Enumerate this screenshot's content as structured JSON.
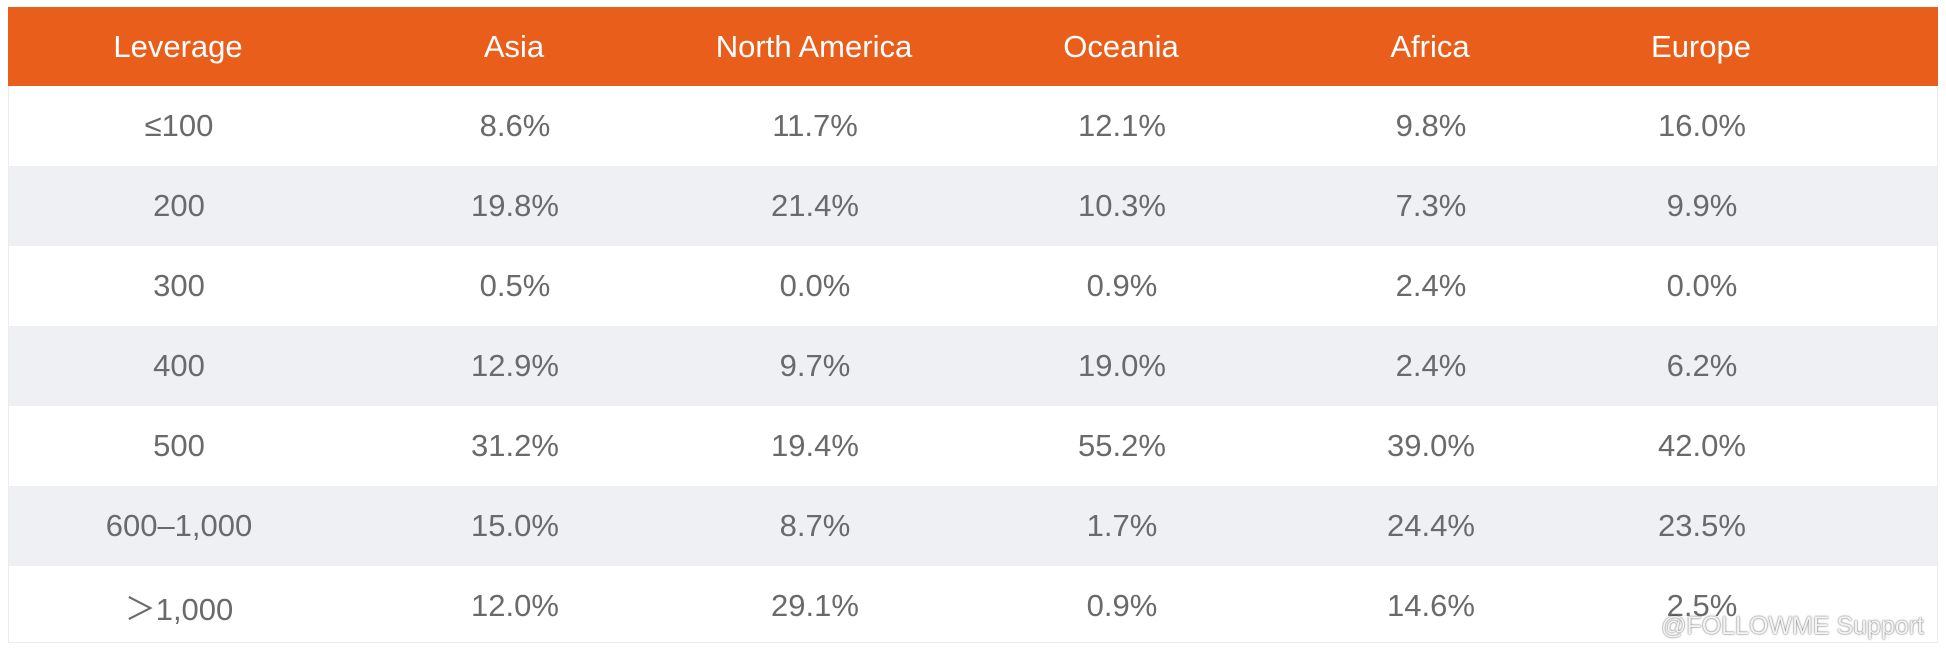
{
  "chart_data": {
    "type": "table",
    "columns": [
      "Leverage",
      "Asia",
      "North America",
      "Oceania",
      "Africa",
      "Europe"
    ],
    "rows": [
      [
        "≤100",
        "8.6%",
        "11.7%",
        "12.1%",
        "9.8%",
        "16.0%"
      ],
      [
        "200",
        "19.8%",
        "21.4%",
        "10.3%",
        "7.3%",
        "9.9%"
      ],
      [
        "300",
        "0.5%",
        "0.0%",
        "0.9%",
        "2.4%",
        "0.0%"
      ],
      [
        "400",
        "12.9%",
        "9.7%",
        "19.0%",
        "2.4%",
        "6.2%"
      ],
      [
        "500",
        "31.2%",
        "19.4%",
        "55.2%",
        "39.0%",
        "42.0%"
      ],
      [
        "600–1,000",
        "15.0%",
        "8.7%",
        "1.7%",
        "24.4%",
        "23.5%"
      ],
      [
        "＞1,000",
        "12.0%",
        "29.1%",
        "0.9%",
        "14.6%",
        "2.5%"
      ]
    ],
    "header_color": "#ea5e1c",
    "stripe_color": "#eef0f4"
  },
  "watermark": {
    "text": "@FOLLOWME Support",
    "icon": "weibo-icon"
  }
}
